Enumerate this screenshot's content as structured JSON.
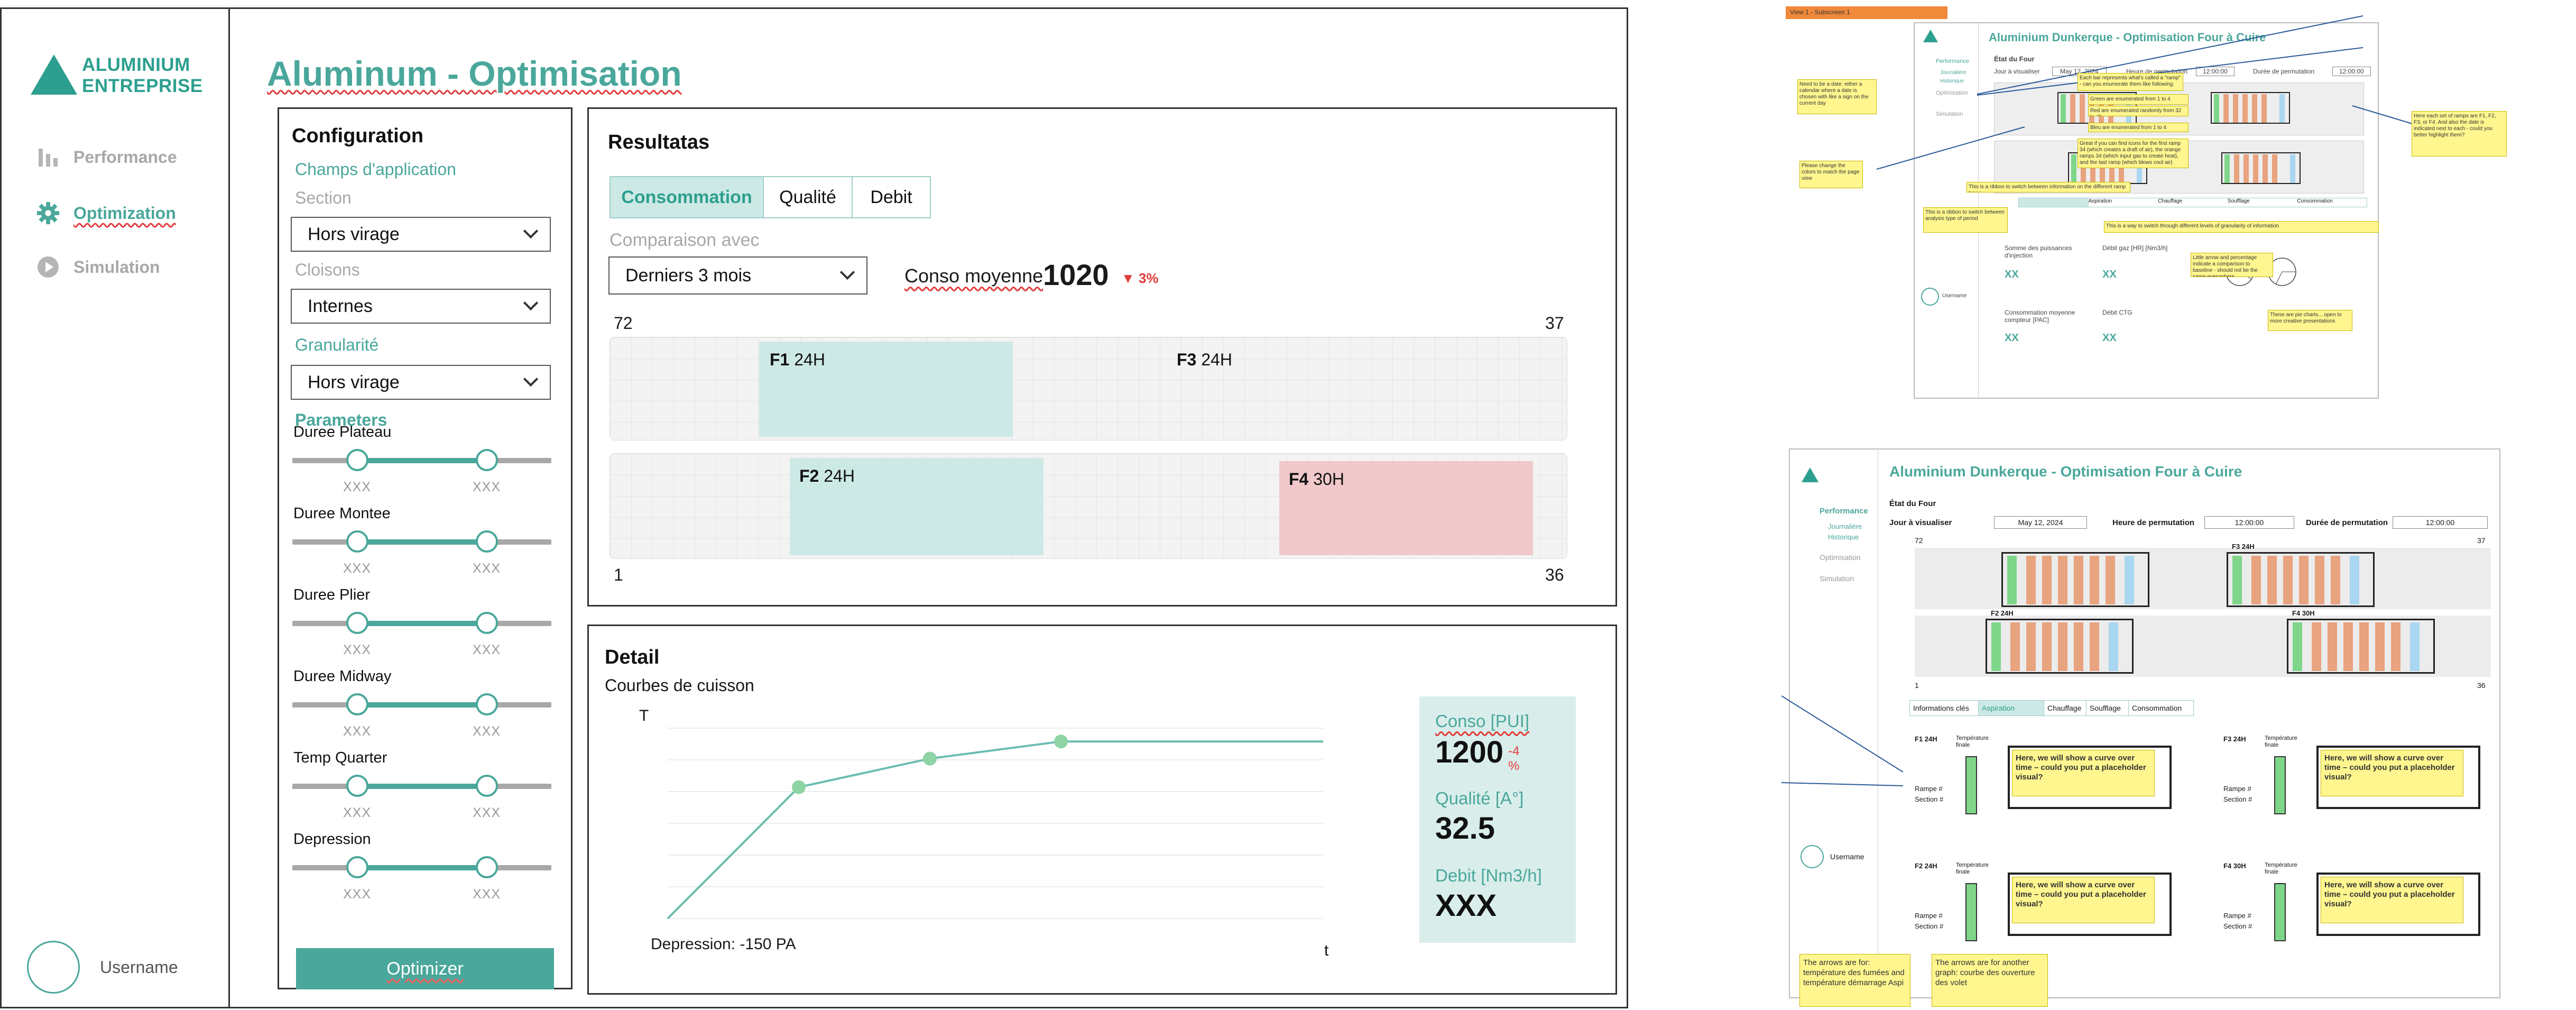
{
  "sidebar": {
    "logo_line1": "ALUMINIUM",
    "logo_line2": "ENTREPRISE",
    "nav": [
      {
        "label": "Performance",
        "icon": "bar-chart-icon"
      },
      {
        "label": "Optimization",
        "icon": "gear-icon"
      },
      {
        "label": "Simulation",
        "icon": "play-icon"
      }
    ],
    "username": "Username"
  },
  "page": {
    "title": "Aluminum - Optimisation"
  },
  "config": {
    "title": "Configuration",
    "champs_label": "Champs d'application",
    "section_label": "Section",
    "section_value": "Hors virage",
    "cloisons_label": "Cloisons",
    "cloisons_value": "Internes",
    "granularite_label": "Granularité",
    "granularite_value": "Hors virage",
    "parameters_label": "Parameters",
    "params": [
      {
        "label": "Duree Plateau",
        "low": "XXX",
        "high": "XXX",
        "range": [
          0.25,
          0.75
        ]
      },
      {
        "label": "Duree Montee",
        "low": "XXX",
        "high": "XXX",
        "range": [
          0.25,
          0.75
        ]
      },
      {
        "label": "Duree Plier",
        "low": "XXX",
        "high": "XXX",
        "range": [
          0.25,
          0.75
        ]
      },
      {
        "label": "Duree Midway",
        "low": "XXX",
        "high": "XXX",
        "range": [
          0.25,
          0.75
        ]
      },
      {
        "label": "Temp  Quarter",
        "low": "XXX",
        "high": "XXX",
        "range": [
          0.25,
          0.75
        ]
      },
      {
        "label": "Depression",
        "low": "XXX",
        "high": "XXX",
        "range": [
          0.25,
          0.75
        ]
      }
    ],
    "button": "Optimizer"
  },
  "results": {
    "title": "Resultatas",
    "tabs": [
      "Consommation",
      "Qualité",
      "Debit"
    ],
    "comparaison_label": "Comparaison avec",
    "comparaison_value": "Derniers 3 mois",
    "conso_label": "Conso moyenne",
    "conso_value": "1020",
    "conso_delta": "3%",
    "axis_top_left": "72",
    "axis_top_right": "37",
    "axis_bottom_left": "1",
    "axis_bottom_right": "36",
    "bars": [
      {
        "id": "F1",
        "dur": "24H"
      },
      {
        "id": "F3",
        "dur": "24H"
      },
      {
        "id": "F2",
        "dur": "24H"
      },
      {
        "id": "F4",
        "dur": "30H"
      }
    ]
  },
  "detail": {
    "title": "Detail",
    "subtitle": "Courbes de cuisson",
    "y_label": "T",
    "x_label": "t",
    "caption": "Depression: -150 PA",
    "kpis": [
      {
        "label": "Conso [PUI]",
        "value": "1200",
        "delta": "-4 %"
      },
      {
        "label": "Qualité [A°]",
        "value": "32.5"
      },
      {
        "label": "Debit [Nm3/h]",
        "value": "XXX"
      }
    ]
  },
  "chart_data": {
    "type": "line",
    "x": [
      0,
      1,
      2,
      3,
      4,
      5
    ],
    "y": [
      0,
      0.69,
      0.84,
      0.93,
      0.93,
      0.93
    ],
    "xlabel": "t",
    "ylabel": "T"
  },
  "mockup_top": {
    "tag": "View 1 - Subscreen 1",
    "title": "Aluminium Dunkerque - Optimisation Four à Cuire",
    "state": "État du Four",
    "jour_label": "Jour à visualiser",
    "jour_value": "May 12, 2024",
    "heure_label": "Heure de permutation",
    "heure_value": "12:00:00",
    "duree_label": "Durée de permutation",
    "duree_value": "12:00:00",
    "nav": [
      "Performance",
      "Journalière",
      "Historique",
      "Optimisation",
      "Simulation"
    ],
    "username": "Username",
    "tabs": [
      "Aspiration",
      "Chauffage",
      "Soufflage",
      "Consommation"
    ],
    "cards": [
      {
        "label": "Somme des puissances d'injection",
        "value": "XX"
      },
      {
        "label": "Débit gaz [HR] [Nm3/h]",
        "value": "XX"
      },
      {
        "label": "Consommation moyenne compteur [PAC]",
        "value": "XX"
      },
      {
        "label": "Débit CTG",
        "value": "XX"
      }
    ],
    "notes": [
      "Need to be a date: either a calendar where a date is chosen with like a sign on the current day",
      "Each bar represents what's called a \"ramp\" - can you enumerate them like following:",
      "Green are enumerated from 1 to 4",
      "Red are enumerated randomly from 32 to 45",
      "Bleu are enumerated from 1 to 4",
      "Great if you can find icons for the first ramp 34 (which creates a draft of air), the orange ramps 34 (which input gas to create heat), and the last ramp (which blows cool air)",
      "Please change the colors to match the page view",
      "This is a ribbon to switch between information on the different ramp types",
      "This is a ribbon to switch between analysis type of period",
      "This is a way to switch through different levels of granularity of information",
      "Little arrow and percentage indicate a comparison to baseline - should not be the same everywhere",
      "Here each set of ramps are F1, F2, F3, or F4. And also the date is indicated next to each - could you better highlight them?",
      "These are pie charts... open to more creative presentations"
    ]
  },
  "mockup_bottom": {
    "title": "Aluminium Dunkerque - Optimisation Four à Cuire",
    "state": "État du Four",
    "jour_label": "Jour à visualiser",
    "jour_value": "May 12, 2024",
    "heure_label": "Heure de permutation",
    "heure_value": "12:00:00",
    "duree_label": "Durée de permutation",
    "duree_value": "12:00:00",
    "nav": [
      "Performance",
      "Journalière",
      "Historique",
      "Optimisation",
      "Simulation"
    ],
    "username": "Username",
    "tabs": [
      "Informations clés",
      "Aspiration",
      "Chauffage",
      "Soufflage",
      "Consommation"
    ],
    "axis": [
      "72",
      "37",
      "1",
      "36"
    ],
    "f_labels": [
      "F1 24H",
      "F3 24H",
      "F2 24H",
      "F4 30H"
    ],
    "temp_label": "Température finale",
    "ramp_label": "Rampe #",
    "section_label": "Section #",
    "placeholder_note": "Here, we will show a curve over time – could you put a placeholder visual?",
    "note_arrows1": "The arrows are for: température des fumées and température démarrage Aspi",
    "note_arrows2": "The arrows are for another graph: courbe des ouverture des volet"
  }
}
